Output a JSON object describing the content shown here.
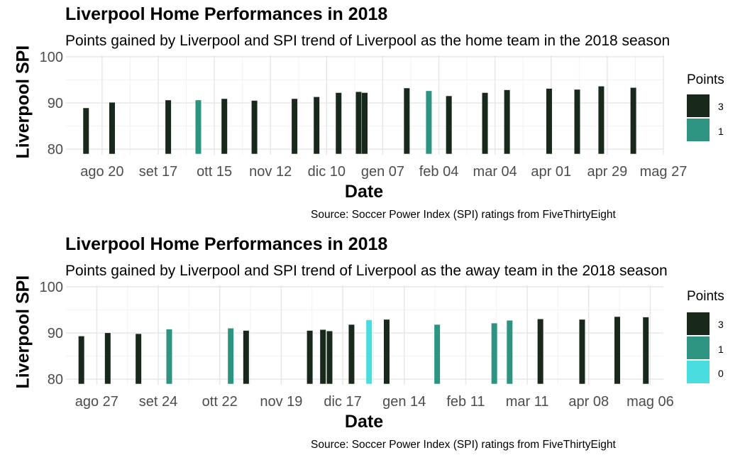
{
  "charts": [
    {
      "title": "Liverpool Home Performances in 2018",
      "subtitle": "Points gained by Liverpool and SPI trend of Liverpool as the home team in the 2018 season",
      "caption": "Source: Soccer Power Index (SPI) ratings from FiveThirtyEight",
      "legend": {
        "title": "Points",
        "items": [
          {
            "label": "3",
            "color": "#18291c"
          },
          {
            "label": "1",
            "color": "#2e9482"
          }
        ]
      }
    },
    {
      "title": "Liverpool Home Performances in 2018",
      "subtitle": "Points gained by Liverpool and SPI trend of Liverpool as the away team in the 2018 season",
      "caption": "Source: Soccer Power Index (SPI) ratings from FiveThirtyEight",
      "legend": {
        "title": "Points",
        "items": [
          {
            "label": "3",
            "color": "#18291c"
          },
          {
            "label": "1",
            "color": "#2e9482"
          },
          {
            "label": "0",
            "color": "#49dde0"
          }
        ]
      }
    }
  ],
  "chart_data": [
    {
      "type": "bar",
      "title": "Liverpool Home Performances in 2018",
      "subtitle": "Points gained by Liverpool and SPI trend of Liverpool as the home team in the 2018 season",
      "xlabel": "Date",
      "ylabel": "Liverpool SPI",
      "xlim": [
        "2018-08-02",
        "2019-05-27"
      ],
      "ylim": [
        78.8,
        100.3
      ],
      "bar_base": 79,
      "y_ticks": [
        80,
        90,
        100
      ],
      "x_ticks": [
        {
          "date": "2018-08-20",
          "label": "ago 20"
        },
        {
          "date": "2018-09-17",
          "label": "set 17"
        },
        {
          "date": "2018-10-15",
          "label": "ott 15"
        },
        {
          "date": "2018-11-12",
          "label": "nov 12"
        },
        {
          "date": "2018-12-10",
          "label": "dic 10"
        },
        {
          "date": "2019-01-07",
          "label": "gen 07"
        },
        {
          "date": "2019-02-04",
          "label": "feb 04"
        },
        {
          "date": "2019-03-04",
          "label": "mar 04"
        },
        {
          "date": "2019-04-01",
          "label": "apr 01"
        },
        {
          "date": "2019-04-29",
          "label": "apr 29"
        },
        {
          "date": "2019-05-27",
          "label": "mag 27"
        }
      ],
      "grid": true,
      "legend_position": "right",
      "series": [
        {
          "name": "3",
          "color": "#18291c",
          "x": [
            "2018-08-12",
            "2018-08-25",
            "2018-09-22",
            "2018-10-20",
            "2018-11-04",
            "2018-11-24",
            "2018-12-05",
            "2018-12-16",
            "2018-12-26",
            "2018-12-29",
            "2019-01-19",
            "2019-02-09",
            "2019-02-27",
            "2019-03-10",
            "2019-03-31",
            "2019-04-14",
            "2019-04-26",
            "2019-05-12"
          ],
          "y": [
            88.9,
            90.1,
            90.6,
            90.9,
            90.5,
            90.9,
            91.3,
            92.2,
            92.4,
            92.2,
            93.2,
            91.5,
            92.2,
            92.8,
            93.1,
            92.9,
            93.6,
            93.3
          ]
        },
        {
          "name": "1",
          "color": "#2e9482",
          "x": [
            "2018-10-07",
            "2019-01-30"
          ],
          "y": [
            90.6,
            92.6
          ]
        }
      ]
    },
    {
      "type": "bar",
      "title": "Liverpool Home Performances in 2018",
      "subtitle": "Points gained by Liverpool and SPI trend of Liverpool as the away team in the 2018 season",
      "xlabel": "Date",
      "ylabel": "Liverpool SPI",
      "xlim": [
        "2018-08-13",
        "2019-05-12"
      ],
      "ylim": [
        78.8,
        100.3
      ],
      "bar_base": 79,
      "y_ticks": [
        80,
        90,
        100
      ],
      "x_ticks": [
        {
          "date": "2018-08-27",
          "label": "ago 27"
        },
        {
          "date": "2018-09-24",
          "label": "set 24"
        },
        {
          "date": "2018-10-22",
          "label": "ott 22"
        },
        {
          "date": "2018-11-19",
          "label": "nov 19"
        },
        {
          "date": "2018-12-17",
          "label": "dic 17"
        },
        {
          "date": "2019-01-14",
          "label": "gen 14"
        },
        {
          "date": "2019-02-11",
          "label": "feb 11"
        },
        {
          "date": "2019-03-11",
          "label": "mar 11"
        },
        {
          "date": "2019-04-08",
          "label": "apr 08"
        },
        {
          "date": "2019-05-06",
          "label": "mag 06"
        }
      ],
      "grid": true,
      "legend_position": "right",
      "series": [
        {
          "name": "3",
          "color": "#18291c",
          "x": [
            "2018-08-20",
            "2018-09-01",
            "2018-09-15",
            "2018-11-03",
            "2018-12-02",
            "2018-12-08",
            "2018-12-11",
            "2018-12-21",
            "2019-01-06",
            "2019-03-17",
            "2019-04-05",
            "2019-04-21",
            "2019-05-04"
          ],
          "y": [
            89.3,
            90.0,
            89.8,
            90.5,
            90.5,
            90.7,
            90.4,
            91.8,
            92.9,
            93.0,
            92.9,
            93.5,
            93.4
          ]
        },
        {
          "name": "1",
          "color": "#2e9482",
          "x": [
            "2018-09-29",
            "2018-10-27",
            "2019-01-29",
            "2019-02-24",
            "2019-03-03"
          ],
          "y": [
            90.8,
            91.0,
            91.8,
            92.1,
            92.7
          ]
        },
        {
          "name": "0",
          "color": "#49dde0",
          "x": [
            "2018-12-29"
          ],
          "y": [
            92.8
          ]
        }
      ]
    }
  ]
}
